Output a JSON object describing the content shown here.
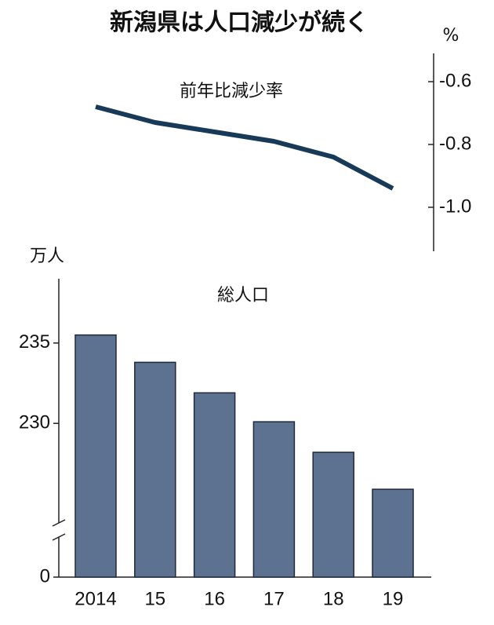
{
  "title": "新潟県は人口減少が続く",
  "chart_data": [
    {
      "type": "line",
      "title": "前年比減少率",
      "unit": "%",
      "color": "#173a58",
      "values": [
        -0.68,
        -0.73,
        -0.76,
        -0.79,
        -0.84,
        -0.94
      ],
      "ylim": [
        -1.14,
        -0.51
      ],
      "yticks": [
        -0.6,
        -0.8,
        {
          "value": -1,
          "label": "-1.0"
        }
      ]
    },
    {
      "type": "bar",
      "title": "総人口",
      "unit": "万人",
      "color": "#5d7190",
      "categories": [
        "2014",
        "15",
        "16",
        "17",
        "18",
        "19"
      ],
      "values": [
        235.5,
        233.8,
        231.9,
        230.1,
        228.2,
        225.9
      ],
      "ylim": [
        0,
        239
      ],
      "ybreak": [
        0,
        224
      ],
      "yticks": [
        0,
        230,
        235
      ]
    }
  ]
}
